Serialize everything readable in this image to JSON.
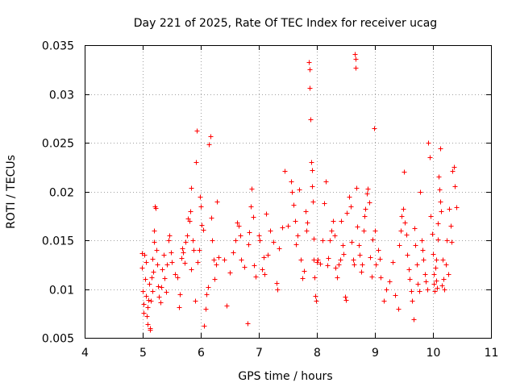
{
  "chart_data": {
    "type": "scatter",
    "title": "Day 221 of 2025, Rate Of TEC Index for receiver ucag",
    "xlabel": "GPS time / hours",
    "ylabel": "ROTI / TECUs",
    "xlim": [
      4,
      11
    ],
    "ylim": [
      0.005,
      0.035
    ],
    "xticks": [
      "4",
      "5",
      "6",
      "7",
      "8",
      "9",
      "10",
      "11"
    ],
    "yticks": [
      "0.005",
      "0.01",
      "0.015",
      "0.02",
      "0.025",
      "0.03",
      "0.035"
    ],
    "grid": true,
    "marker": "+",
    "color": "#ff0000",
    "series": [
      {
        "name": "ucag",
        "points": [
          [
            4.98,
            0.0137
          ],
          [
            4.99,
            0.0122
          ],
          [
            5.0,
            0.0098
          ],
          [
            5.01,
            0.0085
          ],
          [
            5.02,
            0.0076
          ],
          [
            5.03,
            0.0135
          ],
          [
            5.04,
            0.011
          ],
          [
            5.05,
            0.0093
          ],
          [
            5.06,
            0.0128
          ],
          [
            5.07,
            0.0072
          ],
          [
            5.08,
            0.0064
          ],
          [
            5.09,
            0.0081
          ],
          [
            5.1,
            0.0089
          ],
          [
            5.11,
            0.0105
          ],
          [
            5.12,
            0.006
          ],
          [
            5.13,
            0.0058
          ],
          [
            5.14,
            0.0088
          ],
          [
            5.15,
            0.0112
          ],
          [
            5.16,
            0.0098
          ],
          [
            5.17,
            0.0131
          ],
          [
            5.18,
            0.0118
          ],
          [
            5.19,
            0.0148
          ],
          [
            5.2,
            0.016
          ],
          [
            5.21,
            0.0185
          ],
          [
            5.22,
            0.0183
          ],
          [
            5.24,
            0.014
          ],
          [
            5.25,
            0.0125
          ],
          [
            5.27,
            0.0103
          ],
          [
            5.28,
            0.0092
          ],
          [
            5.3,
            0.0086
          ],
          [
            5.32,
            0.0102
          ],
          [
            5.34,
            0.012
          ],
          [
            5.36,
            0.0135
          ],
          [
            5.38,
            0.0111
          ],
          [
            5.4,
            0.0097
          ],
          [
            5.42,
            0.0125
          ],
          [
            5.44,
            0.015
          ],
          [
            5.46,
            0.0155
          ],
          [
            5.48,
            0.0138
          ],
          [
            5.5,
            0.0128
          ],
          [
            5.55,
            0.0115
          ],
          [
            5.6,
            0.0112
          ],
          [
            5.62,
            0.0081
          ],
          [
            5.64,
            0.0095
          ],
          [
            5.66,
            0.0132
          ],
          [
            5.68,
            0.0142
          ],
          [
            5.7,
            0.0138
          ],
          [
            5.72,
            0.0127
          ],
          [
            5.74,
            0.0148
          ],
          [
            5.76,
            0.0155
          ],
          [
            5.78,
            0.0172
          ],
          [
            5.8,
            0.017
          ],
          [
            5.82,
            0.018
          ],
          [
            5.83,
            0.0204
          ],
          [
            5.84,
            0.012
          ],
          [
            5.86,
            0.015
          ],
          [
            5.88,
            0.014
          ],
          [
            5.9,
            0.0088
          ],
          [
            5.92,
            0.023
          ],
          [
            5.93,
            0.0262
          ],
          [
            5.95,
            0.0128
          ],
          [
            5.97,
            0.014
          ],
          [
            5.99,
            0.0195
          ],
          [
            6.0,
            0.0185
          ],
          [
            6.02,
            0.0166
          ],
          [
            6.04,
            0.0161
          ],
          [
            6.06,
            0.0062
          ],
          [
            6.08,
            0.008
          ],
          [
            6.1,
            0.0095
          ],
          [
            6.12,
            0.0102
          ],
          [
            6.14,
            0.0248
          ],
          [
            6.16,
            0.0257
          ],
          [
            6.18,
            0.0173
          ],
          [
            6.2,
            0.015
          ],
          [
            6.22,
            0.013
          ],
          [
            6.24,
            0.011
          ],
          [
            6.26,
            0.0125
          ],
          [
            6.28,
            0.019
          ],
          [
            6.3,
            0.0133
          ],
          [
            6.4,
            0.013
          ],
          [
            6.45,
            0.0083
          ],
          [
            6.5,
            0.0117
          ],
          [
            6.55,
            0.0138
          ],
          [
            6.6,
            0.015
          ],
          [
            6.62,
            0.0168
          ],
          [
            6.65,
            0.0165
          ],
          [
            6.68,
            0.0155
          ],
          [
            6.7,
            0.013
          ],
          [
            6.75,
            0.0123
          ],
          [
            6.8,
            0.0065
          ],
          [
            6.82,
            0.0146
          ],
          [
            6.84,
            0.0158
          ],
          [
            6.86,
            0.0185
          ],
          [
            6.88,
            0.0203
          ],
          [
            6.9,
            0.0174
          ],
          [
            6.92,
            0.0124
          ],
          [
            6.95,
            0.0113
          ],
          [
            7.0,
            0.0155
          ],
          [
            7.02,
            0.015
          ],
          [
            7.05,
            0.012
          ],
          [
            7.08,
            0.0133
          ],
          [
            7.1,
            0.0115
          ],
          [
            7.12,
            0.0177
          ],
          [
            7.15,
            0.0135
          ],
          [
            7.2,
            0.016
          ],
          [
            7.25,
            0.0148
          ],
          [
            7.3,
            0.0106
          ],
          [
            7.32,
            0.01
          ],
          [
            7.35,
            0.0142
          ],
          [
            7.4,
            0.0163
          ],
          [
            7.45,
            0.0221
          ],
          [
            7.5,
            0.0165
          ],
          [
            7.55,
            0.021
          ],
          [
            7.57,
            0.02
          ],
          [
            7.6,
            0.0186
          ],
          [
            7.62,
            0.017
          ],
          [
            7.64,
            0.0146
          ],
          [
            7.66,
            0.0155
          ],
          [
            7.7,
            0.0202
          ],
          [
            7.72,
            0.013
          ],
          [
            7.75,
            0.0111
          ],
          [
            7.78,
            0.0119
          ],
          [
            7.8,
            0.018
          ],
          [
            7.82,
            0.016
          ],
          [
            7.84,
            0.0168
          ],
          [
            7.86,
            0.0333
          ],
          [
            7.87,
            0.0325
          ],
          [
            7.88,
            0.0306
          ],
          [
            7.89,
            0.0274
          ],
          [
            7.9,
            0.023
          ],
          [
            7.91,
            0.0222
          ],
          [
            7.92,
            0.0205
          ],
          [
            7.93,
            0.019
          ],
          [
            7.94,
            0.0152
          ],
          [
            7.95,
            0.013
          ],
          [
            7.96,
            0.0112
          ],
          [
            7.97,
            0.0093
          ],
          [
            7.98,
            0.0088
          ],
          [
            8.0,
            0.0128
          ],
          [
            8.02,
            0.013
          ],
          [
            8.05,
            0.0126
          ],
          [
            8.1,
            0.015
          ],
          [
            8.12,
            0.0188
          ],
          [
            8.15,
            0.021
          ],
          [
            8.18,
            0.0124
          ],
          [
            8.2,
            0.0132
          ],
          [
            8.22,
            0.015
          ],
          [
            8.25,
            0.016
          ],
          [
            8.28,
            0.017
          ],
          [
            8.3,
            0.0155
          ],
          [
            8.32,
            0.0122
          ],
          [
            8.35,
            0.0112
          ],
          [
            8.38,
            0.0125
          ],
          [
            8.4,
            0.013
          ],
          [
            8.42,
            0.017
          ],
          [
            8.44,
            0.0145
          ],
          [
            8.46,
            0.0136
          ],
          [
            8.48,
            0.0092
          ],
          [
            8.5,
            0.0089
          ],
          [
            8.52,
            0.0178
          ],
          [
            8.55,
            0.0195
          ],
          [
            8.58,
            0.0185
          ],
          [
            8.6,
            0.0148
          ],
          [
            8.62,
            0.013
          ],
          [
            8.64,
            0.0125
          ],
          [
            8.65,
            0.0341
          ],
          [
            8.66,
            0.0336
          ],
          [
            8.67,
            0.0327
          ],
          [
            8.68,
            0.0204
          ],
          [
            8.7,
            0.0164
          ],
          [
            8.72,
            0.0145
          ],
          [
            8.74,
            0.0135
          ],
          [
            8.76,
            0.0118
          ],
          [
            8.78,
            0.0125
          ],
          [
            8.8,
            0.016
          ],
          [
            8.82,
            0.0175
          ],
          [
            8.84,
            0.0182
          ],
          [
            8.86,
            0.0198
          ],
          [
            8.88,
            0.0203
          ],
          [
            8.9,
            0.0189
          ],
          [
            8.92,
            0.0133
          ],
          [
            8.94,
            0.0113
          ],
          [
            8.96,
            0.0151
          ],
          [
            8.98,
            0.0265
          ],
          [
            9.0,
            0.016
          ],
          [
            9.02,
            0.0125
          ],
          [
            9.05,
            0.014
          ],
          [
            9.08,
            0.0131
          ],
          [
            9.1,
            0.0112
          ],
          [
            9.15,
            0.0088
          ],
          [
            9.2,
            0.01
          ],
          [
            9.25,
            0.0108
          ],
          [
            9.3,
            0.0128
          ],
          [
            9.35,
            0.0094
          ],
          [
            9.4,
            0.008
          ],
          [
            9.42,
            0.0145
          ],
          [
            9.44,
            0.016
          ],
          [
            9.46,
            0.0175
          ],
          [
            9.48,
            0.0182
          ],
          [
            9.5,
            0.022
          ],
          [
            9.52,
            0.0168
          ],
          [
            9.54,
            0.0156
          ],
          [
            9.56,
            0.0135
          ],
          [
            9.58,
            0.012
          ],
          [
            9.6,
            0.011
          ],
          [
            9.62,
            0.0098
          ],
          [
            9.64,
            0.0088
          ],
          [
            9.66,
            0.0069
          ],
          [
            9.68,
            0.0162
          ],
          [
            9.7,
            0.0145
          ],
          [
            9.72,
            0.0125
          ],
          [
            9.74,
            0.0105
          ],
          [
            9.76,
            0.0098
          ],
          [
            9.78,
            0.02
          ],
          [
            9.8,
            0.015
          ],
          [
            9.82,
            0.014
          ],
          [
            9.84,
            0.013
          ],
          [
            9.86,
            0.0115
          ],
          [
            9.88,
            0.0108
          ],
          [
            9.9,
            0.01
          ],
          [
            9.92,
            0.025
          ],
          [
            9.94,
            0.0235
          ],
          [
            9.96,
            0.0175
          ],
          [
            9.98,
            0.0157
          ],
          [
            10.0,
            0.0136
          ],
          [
            10.01,
            0.0115
          ],
          [
            10.02,
            0.0105
          ],
          [
            10.03,
            0.0098
          ],
          [
            10.04,
            0.0122
          ],
          [
            10.05,
            0.013
          ],
          [
            10.06,
            0.0109
          ],
          [
            10.07,
            0.0101
          ],
          [
            10.08,
            0.0151
          ],
          [
            10.09,
            0.0167
          ],
          [
            10.1,
            0.0215
          ],
          [
            10.11,
            0.0202
          ],
          [
            10.12,
            0.0244
          ],
          [
            10.13,
            0.019
          ],
          [
            10.14,
            0.018
          ],
          [
            10.15,
            0.0104
          ],
          [
            10.16,
            0.013
          ],
          [
            10.18,
            0.011
          ],
          [
            10.2,
            0.01
          ],
          [
            10.22,
            0.0125
          ],
          [
            10.24,
            0.015
          ],
          [
            10.26,
            0.0115
          ],
          [
            10.28,
            0.0182
          ],
          [
            10.3,
            0.0165
          ],
          [
            10.32,
            0.0148
          ],
          [
            10.34,
            0.0221
          ],
          [
            10.36,
            0.0225
          ],
          [
            10.38,
            0.0205
          ],
          [
            10.4,
            0.0184
          ]
        ]
      }
    ]
  }
}
